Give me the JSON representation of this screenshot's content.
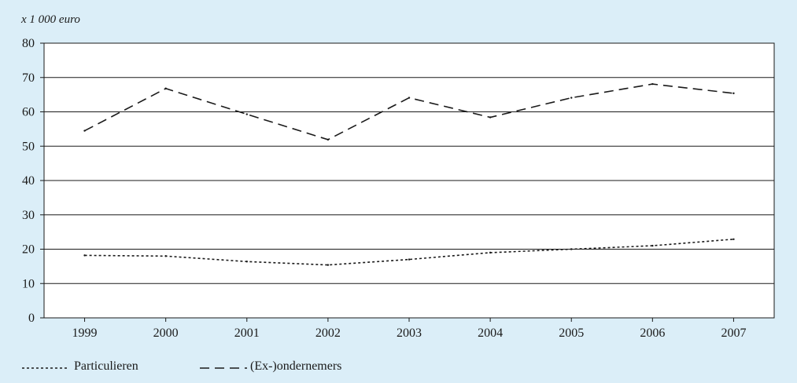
{
  "chart_data": {
    "type": "line",
    "unit_label": "x 1 000 euro",
    "x": [
      "1999",
      "2000",
      "2001",
      "2002",
      "2003",
      "2004",
      "2005",
      "2006",
      "2007"
    ],
    "ylim": [
      0,
      80
    ],
    "y_ticks": [
      0,
      10,
      20,
      30,
      40,
      50,
      60,
      70,
      80
    ],
    "grid": "horizontal",
    "legend_position": "bottom",
    "series": [
      {
        "name": "Particulieren",
        "style": "dotted",
        "color": "#1a1a1a",
        "values": [
          18.2,
          18.0,
          16.4,
          15.4,
          17.0,
          19.0,
          20.0,
          21.0,
          22.9
        ]
      },
      {
        "name": "(Ex-)ondernemers",
        "style": "dashed",
        "color": "#1a1a1a",
        "values": [
          54.5,
          66.8,
          59.3,
          51.9,
          64.1,
          58.4,
          64.1,
          68.1,
          65.4
        ]
      }
    ]
  }
}
